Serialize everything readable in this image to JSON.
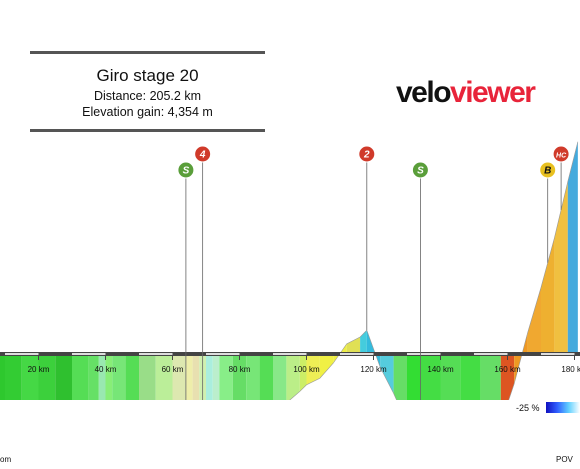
{
  "title_panel": {
    "title": "Giro stage 20",
    "distance": "Distance: 205.2 km",
    "elevation_gain": "Elevation gain: 4,354 m"
  },
  "brand": {
    "part1": "velo",
    "part2": "viewer"
  },
  "legend": {
    "min_label": "-25 %"
  },
  "footer": {
    "left": "om",
    "right": "POV"
  },
  "colors": {
    "accent": "#e8243a",
    "sprint": "#5a9e3a",
    "cat_red": "#d03a2a",
    "cat_yellow": "#e8c020"
  },
  "chart_data": {
    "type": "area",
    "title": "",
    "xlabel": "",
    "ylabel": "",
    "x_unit": "km",
    "xlim": [
      0,
      205.2
    ],
    "x_ticks": [
      "20 km",
      "40 km",
      "60 km",
      "80 km",
      "100 km",
      "120 km",
      "140 km",
      "160 km",
      "180 km"
    ],
    "x_tick_values": [
      20,
      40,
      60,
      80,
      100,
      120,
      140,
      160,
      180
    ],
    "elevation_profile": {
      "x": [
        0,
        5,
        10,
        15,
        20,
        25,
        30,
        35,
        38,
        40,
        42,
        46,
        50,
        55,
        60,
        64,
        66,
        68,
        70,
        72,
        74,
        78,
        82,
        86,
        90,
        94,
        98,
        100,
        104,
        108,
        112,
        116,
        118,
        122,
        126,
        130,
        134,
        140,
        146,
        152,
        158,
        162,
        166,
        170,
        174,
        178,
        181
      ],
      "y": [
        300,
        310,
        322,
        330,
        337,
        336,
        343,
        352,
        375,
        383,
        372,
        377,
        373,
        376,
        385,
        415,
        425,
        433,
        460,
        445,
        415,
        400,
        414,
        428,
        435,
        480,
        522,
        546,
        570,
        625,
        695,
        720,
        745,
        610,
        515,
        405,
        335,
        342,
        350,
        375,
        405,
        550,
        735,
        900,
        1080,
        1285,
        1430
      ],
      "segment_colors": [
        "#33cc33",
        "#2ec82e",
        "#33cc33",
        "#45d845",
        "#3cd03c",
        "#2fc02f",
        "#55dd55",
        "#66e066",
        "#99e8b0",
        "#88ee77",
        "#77e677",
        "#55dd55",
        "#99dd88",
        "#bbee99",
        "#dde8b0",
        "#eeeeaa",
        "#e8e0b0",
        "#d0f0b0",
        "#aaeedd",
        "#bbeecc",
        "#88ee88",
        "#66dd66",
        "#77e677",
        "#55dd55",
        "#88e888",
        "#bbee88",
        "#ccee66",
        "#eeee55",
        "#f0f044",
        "#eeee44",
        "#e0e055",
        "#44ccdd",
        "#33bbdd",
        "#55ccdd",
        "#66dd66",
        "#33dd33",
        "#44dd44",
        "#55dd55",
        "#44dd44",
        "#66dd66",
        "#dd5522",
        "#ee9922",
        "#f0a830",
        "#eeb030",
        "#f0c040",
        "#44aadd"
      ]
    },
    "markers": [
      {
        "type": "sprint",
        "label": "S",
        "km": 64,
        "color": "#5a9e3a"
      },
      {
        "type": "climb",
        "label": "4",
        "km": 69,
        "color": "#d03a2a"
      },
      {
        "type": "climb",
        "label": "2",
        "km": 118,
        "color": "#d03a2a"
      },
      {
        "type": "sprint",
        "label": "S",
        "km": 134,
        "color": "#5a9e3a"
      },
      {
        "type": "bonus",
        "label": "B",
        "km": 172,
        "color": "#e8c020"
      },
      {
        "type": "climb",
        "label": "HC",
        "km": 176,
        "color": "#d03a2a"
      }
    ]
  }
}
